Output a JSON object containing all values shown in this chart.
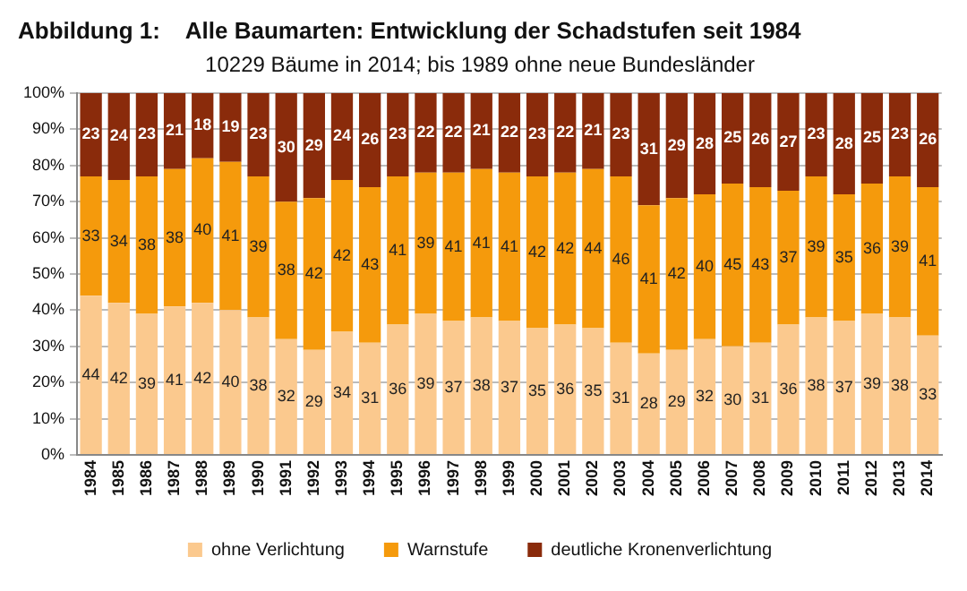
{
  "chart_data": {
    "type": "bar",
    "title": "Abbildung 1:    Alle Baumarten: Entwicklung der Schadstufen seit 1984",
    "subtitle": "10229 Bäume in 2014; bis 1989 ohne neue Bundesländer",
    "categories": [
      "1984",
      "1985",
      "1986",
      "1987",
      "1988",
      "1989",
      "1990",
      "1991",
      "1992",
      "1993",
      "1994",
      "1995",
      "1996",
      "1997",
      "1998",
      "1999",
      "2000",
      "2001",
      "2002",
      "2003",
      "2004",
      "2005",
      "2006",
      "2007",
      "2008",
      "2009",
      "2010",
      "2011",
      "2012",
      "2013",
      "2014"
    ],
    "series": [
      {
        "name": "ohne Verlichtung",
        "color": "#fbc98e",
        "values": [
          44,
          42,
          39,
          41,
          42,
          40,
          38,
          32,
          29,
          34,
          31,
          36,
          39,
          37,
          38,
          37,
          35,
          36,
          35,
          31,
          28,
          29,
          32,
          30,
          31,
          36,
          38,
          37,
          39,
          38,
          33
        ]
      },
      {
        "name": "Warnstufe",
        "color": "#f59a0c",
        "values": [
          33,
          34,
          38,
          38,
          40,
          41,
          39,
          38,
          42,
          42,
          43,
          41,
          39,
          41,
          41,
          41,
          42,
          42,
          44,
          46,
          41,
          42,
          40,
          45,
          43,
          37,
          39,
          35,
          36,
          39,
          41
        ]
      },
      {
        "name": "deutliche Kronenverlichtung",
        "color": "#8a2b0b",
        "values": [
          23,
          24,
          23,
          21,
          18,
          19,
          23,
          30,
          29,
          24,
          26,
          23,
          22,
          22,
          21,
          22,
          23,
          22,
          21,
          23,
          31,
          29,
          28,
          25,
          26,
          27,
          23,
          28,
          25,
          23,
          26
        ]
      }
    ],
    "stacked": true,
    "ylim": [
      0,
      100
    ],
    "yticks": [
      {
        "value": 0,
        "label": "0%"
      },
      {
        "value": 10,
        "label": "10%"
      },
      {
        "value": 20,
        "label": "20%"
      },
      {
        "value": 30,
        "label": "30%"
      },
      {
        "value": 40,
        "label": "40%"
      },
      {
        "value": 50,
        "label": "50%"
      },
      {
        "value": 60,
        "label": "60%"
      },
      {
        "value": 70,
        "label": "70%"
      },
      {
        "value": 80,
        "label": "80%"
      },
      {
        "value": 90,
        "label": "90%"
      },
      {
        "value": 100,
        "label": "100%"
      }
    ],
    "grid": "y",
    "legend": "bottom",
    "data_labels": true
  }
}
